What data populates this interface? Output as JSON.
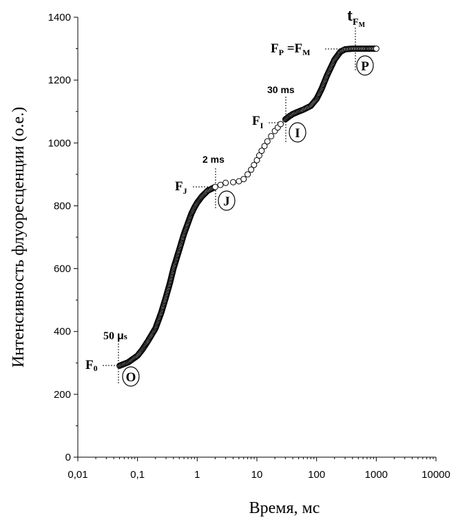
{
  "chart_data": {
    "type": "scatter",
    "title": "",
    "xlabel": "Время, мс",
    "ylabel": "Интенсивность флуоресценции (о.е.)",
    "x_scale": "log",
    "xlim": [
      0.01,
      10000
    ],
    "ylim": [
      0,
      1400
    ],
    "x_ticks": [
      0.01,
      0.1,
      1,
      10,
      100,
      1000,
      10000
    ],
    "x_tick_labels": [
      "0,01",
      "0,1",
      "1",
      "10",
      "100",
      "1000",
      "10000"
    ],
    "y_ticks": [
      0,
      200,
      400,
      600,
      800,
      1000,
      1200,
      1400
    ],
    "y_tick_labels": [
      "0",
      "200",
      "400",
      "600",
      "800",
      "1000",
      "1200",
      "1400"
    ],
    "grid": false,
    "marker": "open-circle",
    "series": [
      {
        "x": [
          0.05,
          0.06,
          0.07,
          0.08,
          0.1,
          0.12,
          0.15,
          0.2,
          0.25,
          0.3,
          0.35,
          0.4,
          0.5,
          0.6,
          0.7,
          0.8,
          0.9,
          1.0,
          1.2,
          1.5,
          2.0,
          3,
          4,
          5,
          6,
          7,
          8,
          10,
          12,
          15,
          20,
          25,
          30,
          35,
          40,
          50,
          60,
          80,
          100,
          120,
          150,
          200,
          250,
          300,
          400,
          500,
          600,
          700,
          800,
          1000
        ],
        "y": [
          291,
          297,
          302,
          310,
          323,
          342,
          370,
          410,
          460,
          510,
          555,
          600,
          660,
          710,
          745,
          775,
          795,
          810,
          830,
          848,
          860,
          873,
          875,
          878,
          885,
          900,
          915,
          945,
          975,
          1005,
          1038,
          1060,
          1075,
          1085,
          1092,
          1100,
          1106,
          1118,
          1140,
          1170,
          1215,
          1265,
          1290,
          1298,
          1300,
          1300,
          1300,
          1300,
          1300,
          1300
        ]
      }
    ],
    "annotations": {
      "f0_label": "F",
      "f0_sub": "0",
      "fj_label": "F",
      "fj_sub": "J",
      "fi_label": "F",
      "fi_sub": "I",
      "fp_label_a": "F",
      "fp_sub_a": "P",
      "fp_eq": " =",
      "fp_label_b": "F",
      "fp_sub_b": "M",
      "tfm_label": "t",
      "tfm_sub": "F",
      "tfm_subsub": "M",
      "t50_num": "50 ",
      "t50_mu": "μ",
      "t50_unit": "s",
      "t2": "2 ms",
      "t30": "30 ms",
      "point_o": "O",
      "point_j": "J",
      "point_i": "I",
      "point_p": "P"
    }
  }
}
